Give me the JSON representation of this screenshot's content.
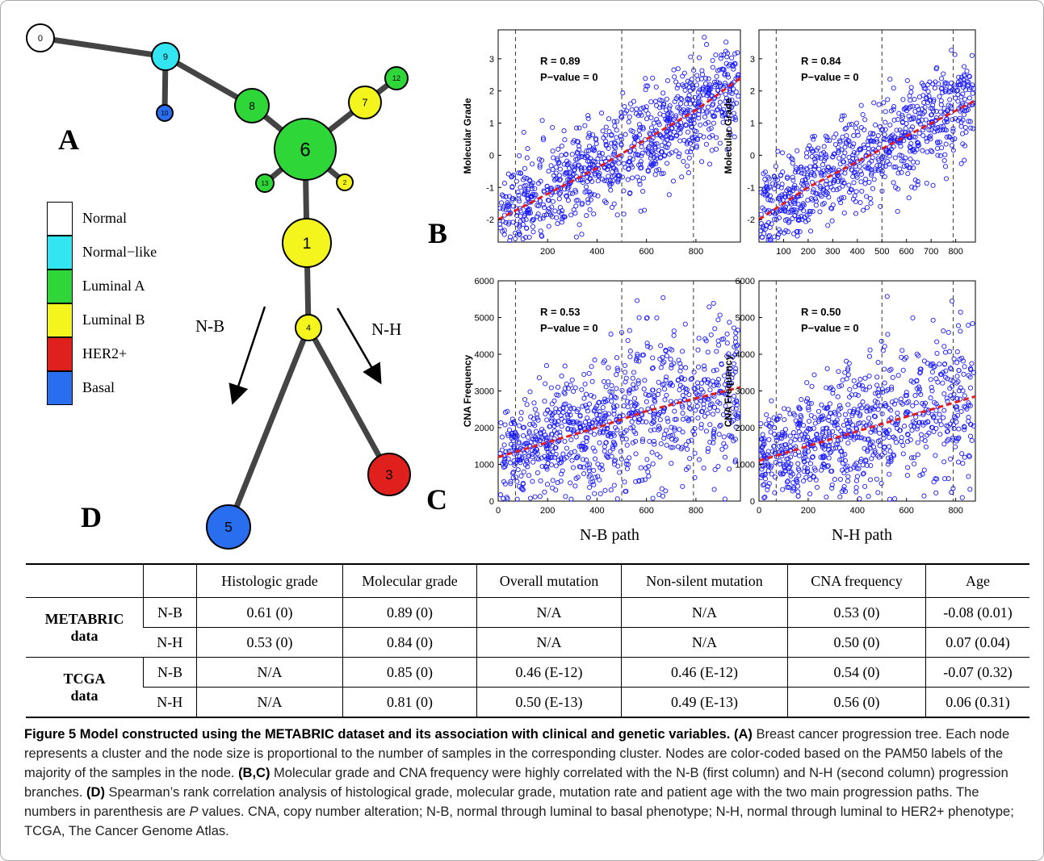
{
  "panels": {
    "a": "A",
    "b": "B",
    "c": "C",
    "d": "D"
  },
  "legend": [
    {
      "label": "Normal",
      "color": "#ffffff"
    },
    {
      "label": "Normal−like",
      "color": "#33e5f0"
    },
    {
      "label": "Luminal A",
      "color": "#2fd638"
    },
    {
      "label": "Luminal B",
      "color": "#f5f51e"
    },
    {
      "label": "HER2+",
      "color": "#e0201c"
    },
    {
      "label": "Basal",
      "color": "#2a6ef0"
    }
  ],
  "tree_nodes": [
    {
      "id": "0",
      "type": "Normal"
    },
    {
      "id": "9",
      "type": "Normal-like"
    },
    {
      "id": "10",
      "type": "Basal"
    },
    {
      "id": "8",
      "type": "Luminal A"
    },
    {
      "id": "6",
      "type": "Luminal A"
    },
    {
      "id": "13",
      "type": "Luminal A"
    },
    {
      "id": "12",
      "type": "Luminal A"
    },
    {
      "id": "7",
      "type": "Luminal B"
    },
    {
      "id": "2",
      "type": "Luminal B"
    },
    {
      "id": "1",
      "type": "Luminal B"
    },
    {
      "id": "4",
      "type": "Luminal B"
    },
    {
      "id": "3",
      "type": "HER2+"
    },
    {
      "id": "5",
      "type": "Basal"
    }
  ],
  "path_labels": {
    "nb": "N-B",
    "nh": "N-H"
  },
  "column_titles": {
    "nb": "N-B path",
    "nh": "N-H path"
  },
  "chart_data": [
    {
      "type": "scatter",
      "panel": "B",
      "path": "N-B",
      "ylabel": "Molecular Grade",
      "xlabel": "",
      "xlim": [
        0,
        980
      ],
      "ylim": [
        -2.7,
        3.9
      ],
      "xticks": [
        200,
        400,
        600,
        800
      ],
      "yticks": [
        -2,
        -1,
        0,
        1,
        2,
        3
      ],
      "r_text": "R = 0.89",
      "p_text": "P−value = 0",
      "vlines": [
        70,
        500,
        790
      ],
      "trend": [
        [
          0,
          -2.0
        ],
        [
          200,
          -1.2
        ],
        [
          400,
          -0.4
        ],
        [
          600,
          0.5
        ],
        [
          800,
          1.4
        ],
        [
          980,
          2.4
        ]
      ],
      "n_points": 950
    },
    {
      "type": "scatter",
      "panel": "B",
      "path": "N-H",
      "ylabel": "Molecular Grade",
      "xlabel": "",
      "xlim": [
        0,
        880
      ],
      "ylim": [
        -2.7,
        3.9
      ],
      "xticks": [
        100,
        200,
        300,
        400,
        500,
        600,
        700,
        800
      ],
      "yticks": [
        -2,
        -1,
        0,
        1,
        2,
        3
      ],
      "r_text": "R = 0.84",
      "p_text": "P−value = 0",
      "vlines": [
        70,
        500,
        790
      ],
      "trend": [
        [
          0,
          -2.0
        ],
        [
          200,
          -1.0
        ],
        [
          400,
          -0.2
        ],
        [
          600,
          0.6
        ],
        [
          880,
          1.7
        ]
      ],
      "n_points": 850
    },
    {
      "type": "scatter",
      "panel": "C",
      "path": "N-B",
      "ylabel": "CNA Frequency",
      "xlabel": "",
      "xlim": [
        0,
        980
      ],
      "ylim": [
        0,
        6000
      ],
      "xticks": [
        0,
        200,
        400,
        600,
        800
      ],
      "yticks": [
        0,
        1000,
        2000,
        3000,
        4000,
        5000,
        6000
      ],
      "r_text": "R = 0.53",
      "p_text": "P−value = 0",
      "vlines": [
        70,
        500,
        790
      ],
      "trend": [
        [
          0,
          1200
        ],
        [
          200,
          1600
        ],
        [
          400,
          2000
        ],
        [
          600,
          2450
        ],
        [
          800,
          2800
        ],
        [
          980,
          3100
        ]
      ],
      "n_points": 950
    },
    {
      "type": "scatter",
      "panel": "C",
      "path": "N-H",
      "ylabel": "CNA Frequency",
      "xlabel": "",
      "xlim": [
        0,
        880
      ],
      "ylim": [
        0,
        6000
      ],
      "xticks": [
        0,
        200,
        400,
        600,
        800
      ],
      "yticks": [
        0,
        1000,
        2000,
        3000,
        4000,
        5000,
        6000
      ],
      "r_text": "R = 0.50",
      "p_text": "P−value = 0",
      "vlines": [
        70,
        500,
        790
      ],
      "trend": [
        [
          0,
          1100
        ],
        [
          200,
          1500
        ],
        [
          400,
          1900
        ],
        [
          600,
          2300
        ],
        [
          880,
          2850
        ]
      ],
      "n_points": 850
    }
  ],
  "table": {
    "headers": [
      "Histologic grade",
      "Molecular grade",
      "Overall mutation",
      "Non-silent mutation",
      "CNA frequency",
      "Age"
    ],
    "groups": [
      {
        "name_line1": "METABRIC",
        "name_line2": "data",
        "rows": [
          {
            "path": "N-B",
            "cells": [
              "0.61 (0)",
              "0.89 (0)",
              "N/A",
              "N/A",
              "0.53 (0)",
              "-0.08 (0.01)"
            ]
          },
          {
            "path": "N-H",
            "cells": [
              "0.53 (0)",
              "0.84 (0)",
              "N/A",
              "N/A",
              "0.50 (0)",
              "0.07 (0.04)"
            ]
          }
        ]
      },
      {
        "name_line1": "TCGA",
        "name_line2": "data",
        "rows": [
          {
            "path": "N-B",
            "cells": [
              "N/A",
              "0.85 (0)",
              "0.46 (E-12)",
              "0.46 (E-12)",
              "0.54 (0)",
              "-0.07 (0.32)"
            ]
          },
          {
            "path": "N-H",
            "cells": [
              "N/A",
              "0.81 (0)",
              "0.50 (E-13)",
              "0.49 (E-13)",
              "0.56 (0)",
              "0.06 (0.31)"
            ]
          }
        ]
      }
    ]
  },
  "caption": {
    "title": "Figure 5 Model constructed using the METABRIC dataset and its association with clinical and genetic variables.",
    "a_tag": "(A)",
    "a_text": " Breast cancer progression tree. Each node represents a cluster and the node size is proportional to the number of samples in the corresponding cluster. Nodes are color-coded based on the PAM50 labels of the majority of the samples in the node. ",
    "bc_tag": "(B,C)",
    "bc_text": " Molecular grade and CNA frequency were highly correlated with the N-B (first column) and N-H (second column) progression branches. ",
    "d_tag": "(D)",
    "d_text": " Spearman’s rank correlation analysis of histological grade, molecular grade, mutation rate and patient age with the two main progression paths. The numbers in parenthesis are ",
    "p_italic": "P",
    "d_text2": " values. CNA, copy number alteration; N-B, normal through luminal to basal phenotype; N-H, normal through luminal to HER2+ phenotype; TCGA, The Cancer Genome Atlas."
  }
}
